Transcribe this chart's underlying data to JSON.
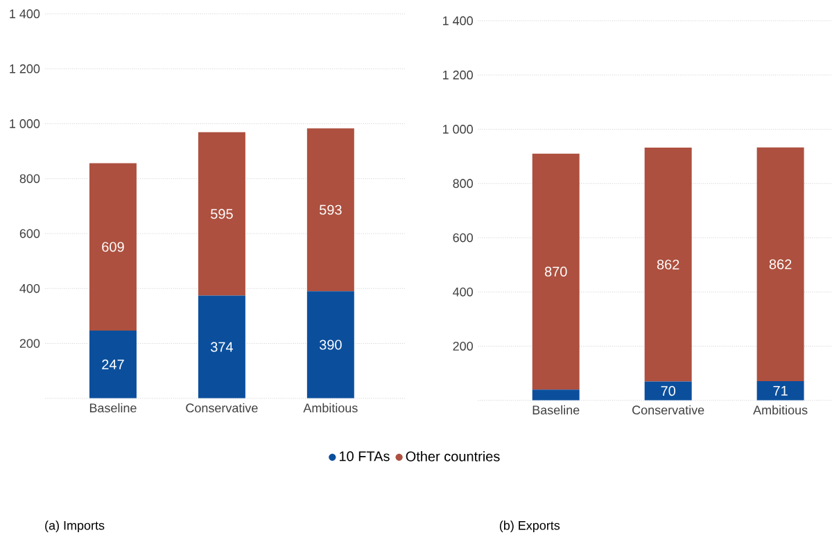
{
  "chart_data": [
    {
      "type": "bar",
      "stacked": true,
      "title": "(a)    Imports",
      "categories": [
        "Baseline",
        "Conservative",
        "Ambitious"
      ],
      "series": [
        {
          "name": "10 FTAs",
          "color": "#0b4f9c",
          "values": [
            247,
            374,
            390
          ]
        },
        {
          "name": "Other countries",
          "color": "#ad503f",
          "values": [
            609,
            595,
            593
          ]
        }
      ],
      "data_labels": true,
      "ylim": [
        0,
        1400
      ],
      "yticks": [
        {
          "value": 0,
          "label": null
        },
        200,
        400,
        600,
        800,
        {
          "value": 1000,
          "label": "1 000"
        },
        {
          "value": 1200,
          "label": "1 200"
        },
        {
          "value": 1400,
          "label": "1 400"
        }
      ],
      "grid": "y",
      "legend": "bottom"
    },
    {
      "type": "bar",
      "stacked": true,
      "title": "(b)    Exports",
      "categories": [
        "Baseline",
        "Conservative",
        "Ambitious"
      ],
      "series": [
        {
          "color": "#0b4f9c",
          "values": [
            40,
            70,
            71
          ],
          "value_labels": [
            null,
            "70",
            "71"
          ]
        },
        {
          "color": "#ad503f",
          "values": [
            870,
            862,
            862
          ],
          "value_labels": [
            "870",
            "862",
            "862"
          ]
        }
      ],
      "ylim": [
        0,
        1400
      ],
      "yticks": [
        {
          "value": 0,
          "label": null
        },
        200,
        400,
        600,
        800,
        {
          "value": 1000,
          "label": "1 000"
        },
        {
          "value": 1200,
          "label": "1 200"
        },
        {
          "value": 1400,
          "label": "1 400"
        }
      ],
      "grid": "y"
    }
  ]
}
